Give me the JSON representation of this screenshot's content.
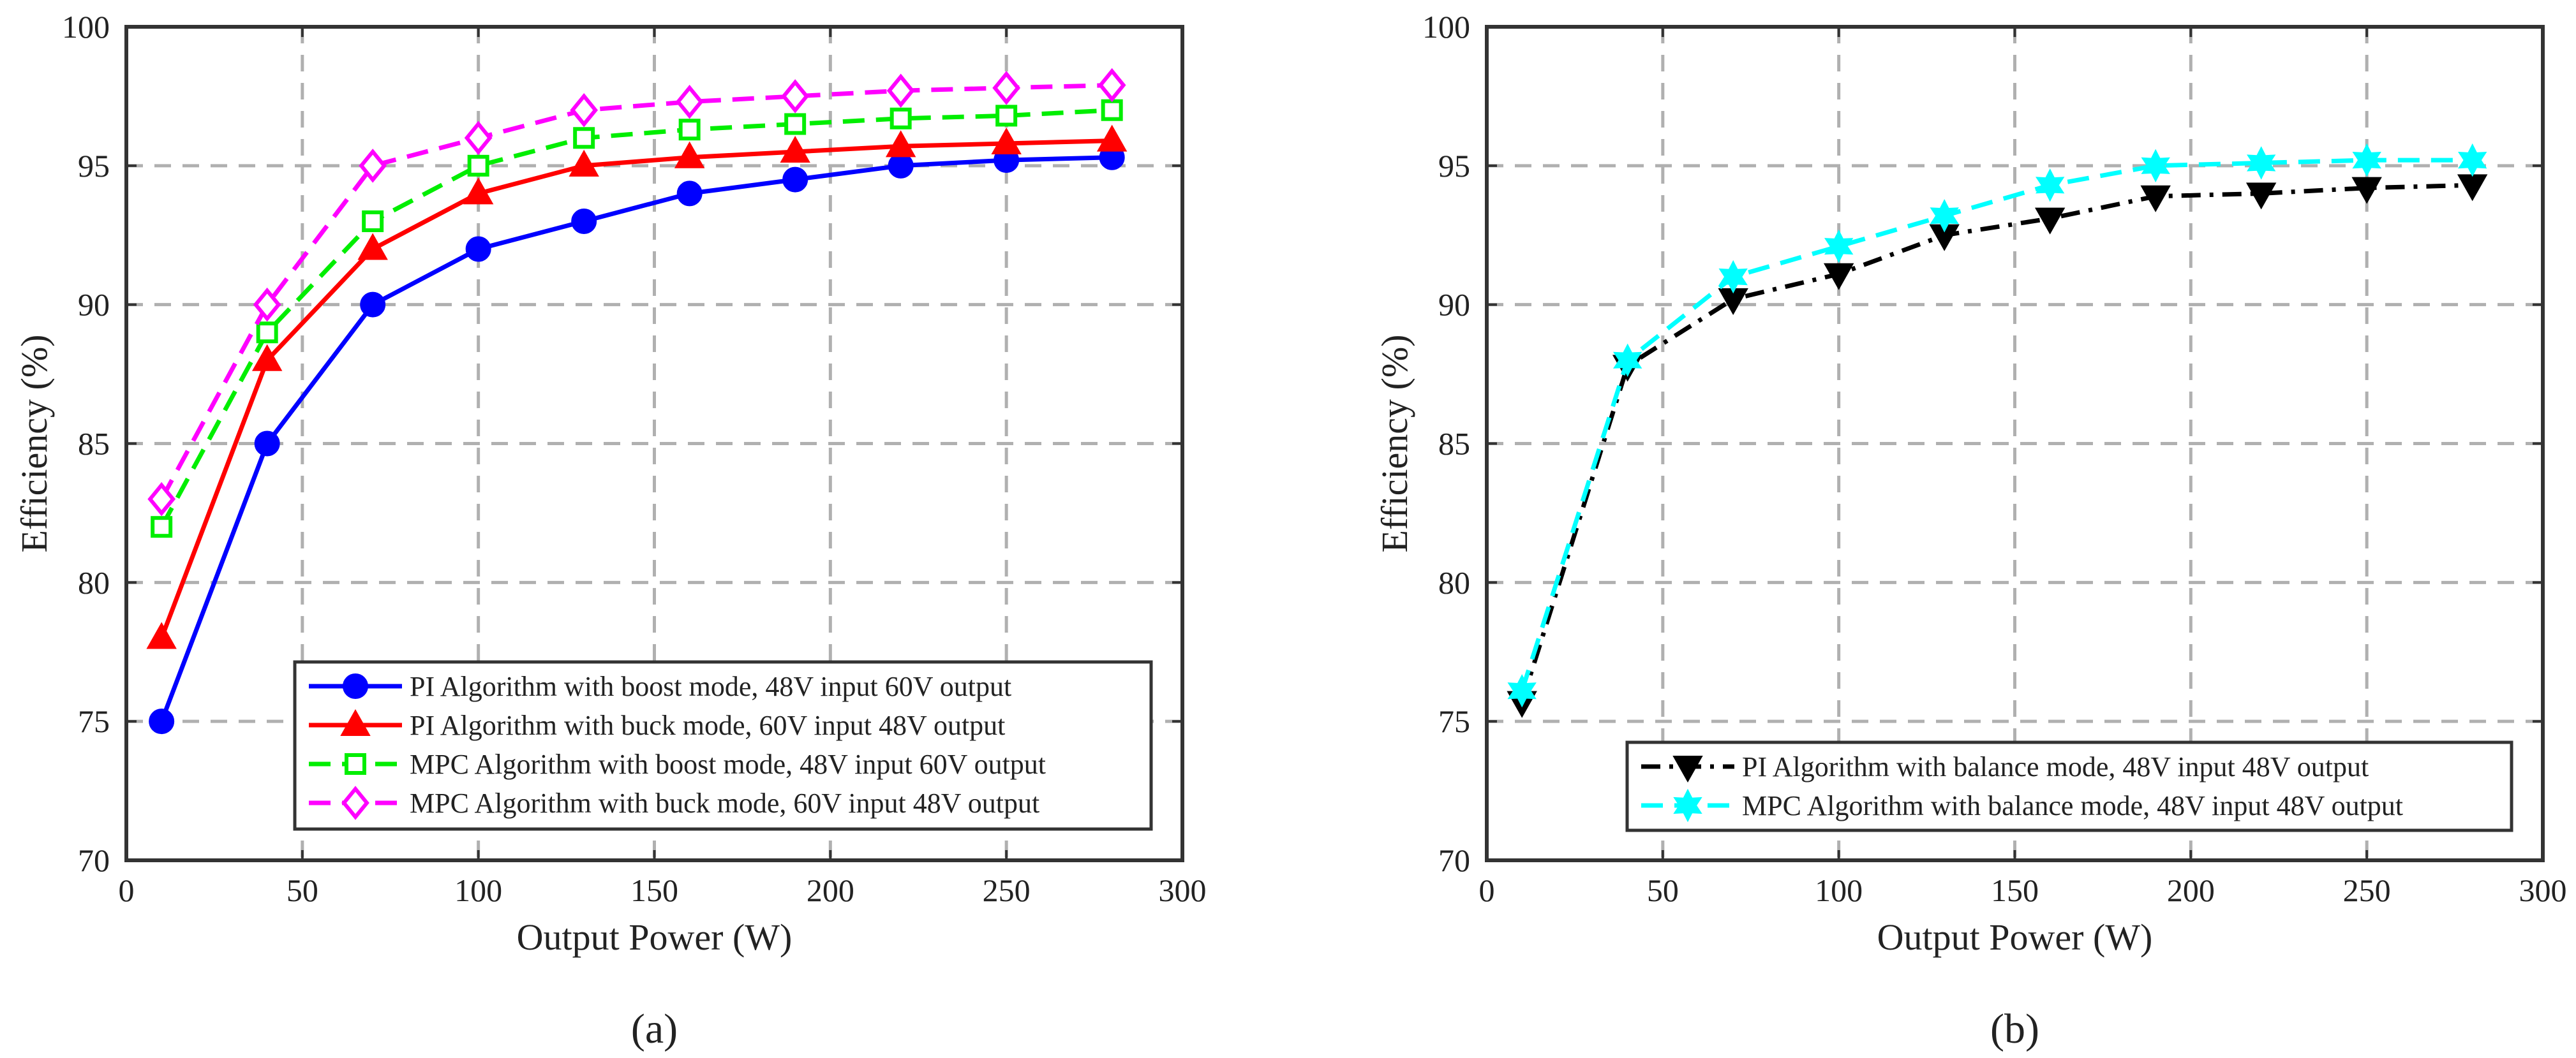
{
  "chart_data": [
    {
      "type": "line",
      "panel_label": "(a)",
      "xlabel": "Output Power (W)",
      "ylabel": "Efficiency (%)",
      "xlim": [
        0,
        300
      ],
      "ylim": [
        70,
        100
      ],
      "xticks": [
        0,
        50,
        100,
        150,
        200,
        250,
        300
      ],
      "yticks": [
        70,
        75,
        80,
        85,
        90,
        95,
        100
      ],
      "grid": true,
      "legend_position": "bottom-right",
      "x": [
        10,
        40,
        70,
        100,
        130,
        160,
        190,
        220,
        250,
        280
      ],
      "series": [
        {
          "name": "PI Algorithm with boost mode, 48V input 60V output",
          "color": "#0000ff",
          "dash": "solid",
          "marker": "circle",
          "values": [
            75,
            85,
            90,
            92,
            93,
            94,
            94.5,
            95,
            95.2,
            95.3
          ]
        },
        {
          "name": "PI Algorithm with buck mode, 60V input 48V output",
          "color": "#ff0000",
          "dash": "solid",
          "marker": "triangle-up",
          "values": [
            78,
            88,
            92,
            94,
            95,
            95.3,
            95.5,
            95.7,
            95.8,
            95.9
          ]
        },
        {
          "name": "MPC Algorithm with boost mode, 48V input 60V output",
          "color": "#00ee00",
          "dash": "dashed",
          "marker": "square-open",
          "values": [
            82,
            89,
            93,
            95,
            96,
            96.3,
            96.5,
            96.7,
            96.8,
            97
          ]
        },
        {
          "name": "MPC Algorithm with buck mode, 60V input 48V output",
          "color": "#ff00ff",
          "dash": "dashed",
          "marker": "diamond-open",
          "values": [
            83,
            90,
            95,
            96,
            97,
            97.3,
            97.5,
            97.7,
            97.8,
            97.9
          ]
        }
      ]
    },
    {
      "type": "line",
      "panel_label": "(b)",
      "xlabel": "Output Power (W)",
      "ylabel": "Efficiency (%)",
      "xlim": [
        0,
        300
      ],
      "ylim": [
        70,
        100
      ],
      "xticks": [
        0,
        50,
        100,
        150,
        200,
        250,
        300
      ],
      "yticks": [
        70,
        75,
        80,
        85,
        90,
        95,
        100
      ],
      "grid": true,
      "legend_position": "bottom-right",
      "x": [
        10,
        40,
        70,
        100,
        130,
        160,
        190,
        220,
        250,
        280
      ],
      "series": [
        {
          "name": "PI Algorithm with balance mode, 48V input 48V output",
          "color": "#000000",
          "dash": "dashdot",
          "marker": "triangle-down",
          "values": [
            75.7,
            87.8,
            90.2,
            91.1,
            92.5,
            93.1,
            93.9,
            94,
            94.2,
            94.3
          ]
        },
        {
          "name": "MPC Algorithm with balance mode, 48V input 48V output",
          "color": "#00ffff",
          "dash": "dashed",
          "marker": "hexagram",
          "values": [
            76.1,
            88,
            91,
            92.1,
            93.2,
            94.3,
            95,
            95.1,
            95.2,
            95.2
          ]
        }
      ]
    }
  ]
}
